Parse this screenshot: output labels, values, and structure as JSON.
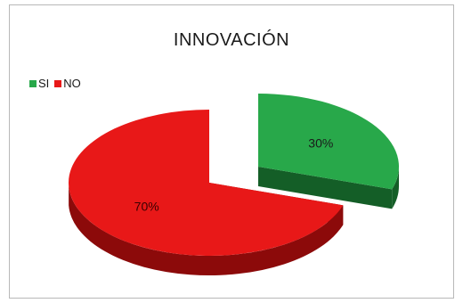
{
  "chart_data": {
    "type": "pie",
    "title": "INNOVACIÓN",
    "categories": [
      "SI",
      "NO"
    ],
    "values": [
      30,
      70
    ],
    "labels": [
      "30%",
      "70%"
    ],
    "legend_position": "top-left",
    "exploded": "SI",
    "style": "3d",
    "colors": {
      "SI": {
        "top": "#28a84a",
        "side": "#145e27",
        "label": "#1a1a1a"
      },
      "NO": {
        "top": "#e81818",
        "side": "#8c0a0a",
        "label": "#3a0000"
      }
    }
  }
}
